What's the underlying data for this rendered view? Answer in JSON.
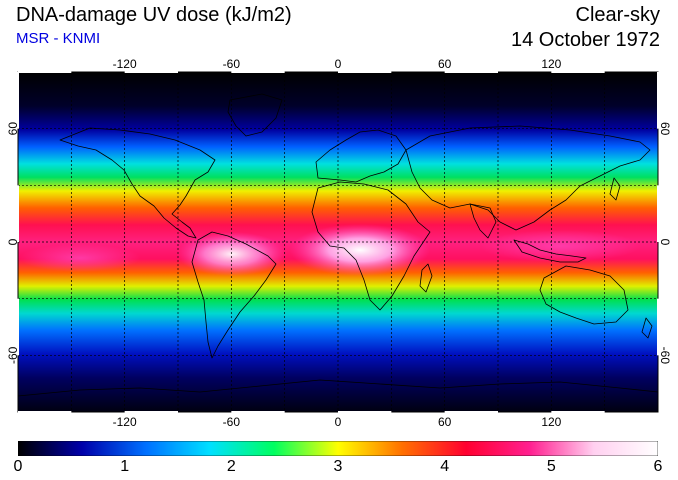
{
  "header": {
    "title": "DNA-damage UV dose (kJ/m2)",
    "subtitle": "MSR - KNMI",
    "condition": "Clear-sky",
    "date": "14 October 1972"
  },
  "map": {
    "lon_ticks": [
      "-120",
      "-60",
      "0",
      "60",
      "120"
    ],
    "lat_ticks": [
      "60",
      "0",
      "-60"
    ],
    "lon_range": [
      -180,
      180
    ],
    "lat_range": [
      -90,
      90
    ],
    "grid_lon_step": 30,
    "grid_lat_step": 30
  },
  "colorbar": {
    "labels": [
      "0",
      "1",
      "2",
      "3",
      "4",
      "5",
      "6"
    ],
    "min": 0,
    "max": 6,
    "colors": [
      "#000000",
      "#0000aa",
      "#0070ff",
      "#00e0ff",
      "#00ff60",
      "#ffff00",
      "#ff7000",
      "#ff0030",
      "#ff2090",
      "#ffd0f0",
      "#ffffff"
    ]
  }
}
